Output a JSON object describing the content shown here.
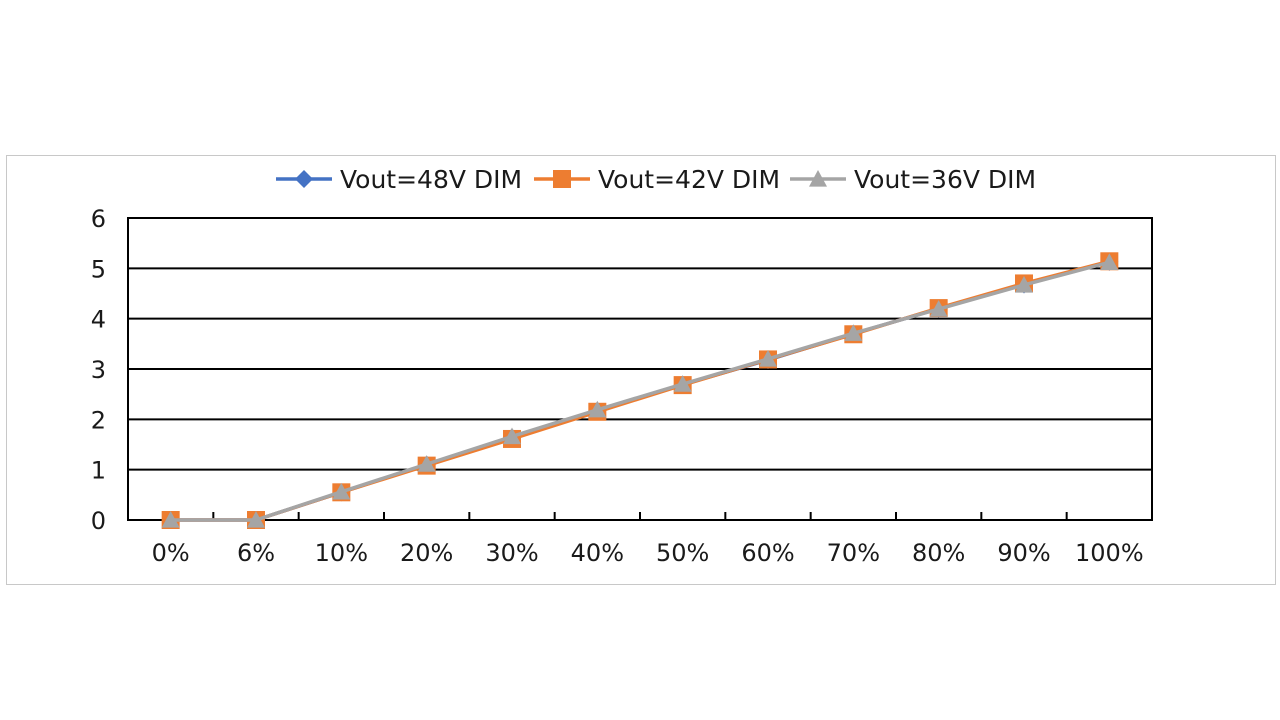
{
  "chart_data": {
    "type": "line",
    "title": "",
    "xlabel": "",
    "ylabel": "",
    "categories": [
      "0%",
      "6%",
      "10%",
      "20%",
      "30%",
      "40%",
      "50%",
      "60%",
      "70%",
      "80%",
      "90%",
      "100%"
    ],
    "series": [
      {
        "name": "Vout=48V DIM",
        "color": "#4472C4",
        "marker": "diamond",
        "values": [
          0,
          0,
          0.55,
          1.1,
          1.64,
          2.17,
          2.69,
          3.18,
          3.7,
          4.2,
          4.68,
          5.13
        ]
      },
      {
        "name": "Vout=42V DIM",
        "color": "#ED7D31",
        "marker": "square",
        "values": [
          0,
          0,
          0.55,
          1.08,
          1.61,
          2.15,
          2.68,
          3.19,
          3.69,
          4.21,
          4.7,
          5.14
        ]
      },
      {
        "name": "Vout=36V DIM",
        "color": "#A5A5A5",
        "marker": "triangle",
        "values": [
          0,
          0,
          0.56,
          1.11,
          1.66,
          2.19,
          2.7,
          3.2,
          3.71,
          4.19,
          4.67,
          5.12
        ]
      }
    ],
    "ylim": [
      0,
      6
    ],
    "yticks": [
      0,
      1,
      2,
      3,
      4,
      5,
      6
    ],
    "grid": true,
    "legend_position": "top"
  }
}
